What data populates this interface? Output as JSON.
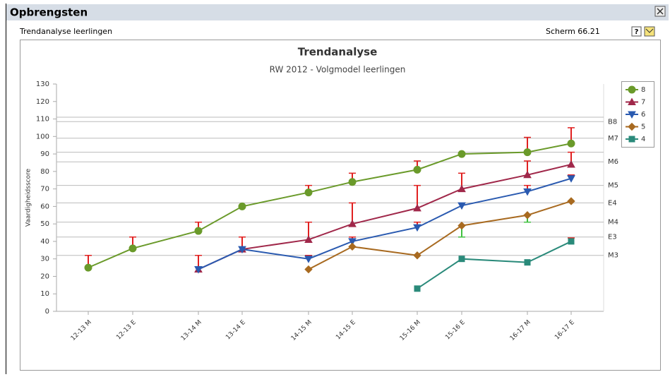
{
  "window": {
    "title": "Opbrengsten",
    "subtitle": "Trendanalyse leerlingen",
    "screen": "Scherm 66.21",
    "help": "?"
  },
  "chart_data": {
    "type": "line",
    "title": "Trendanalyse",
    "subtitle": "RW 2012 - Volgmodel leerlingen",
    "y_label": "Vaardigheidsscore",
    "categories": [
      "12-13 M",
      "12-13 E",
      "13-14 M",
      "13-14 E",
      "14-15 M",
      "14-15 E",
      "15-16 M",
      "15-16 E",
      "16-17 M",
      "16-17 E"
    ],
    "ylim": [
      0,
      130
    ],
    "yticks": [
      0,
      10,
      20,
      30,
      40,
      50,
      60,
      70,
      80,
      90,
      100,
      110,
      120,
      130
    ],
    "reference_lines": {
      "values": [
        111,
        108.5,
        99,
        91,
        85.5,
        72,
        62,
        51,
        42.5,
        32
      ],
      "labels": [
        null,
        "B8",
        "M7",
        null,
        "M6",
        "M5",
        "E4",
        "M4",
        "E3",
        "M3"
      ]
    },
    "series": [
      {
        "name": "8",
        "color": "#6a9a2a",
        "marker": "circle",
        "values": [
          25,
          36,
          46,
          60,
          68,
          74,
          81,
          90,
          91,
          96
        ],
        "targets": [
          32,
          42.5,
          51,
          null,
          72,
          79,
          86,
          null,
          99.5,
          105
        ]
      },
      {
        "name": "7",
        "color": "#a0284a",
        "marker": "triangle-up",
        "values": [
          null,
          null,
          24,
          35.5,
          41,
          50,
          59,
          70,
          78,
          84
        ],
        "targets": [
          null,
          null,
          32,
          42.5,
          51,
          62,
          72,
          79,
          86,
          91
        ]
      },
      {
        "name": "6",
        "color": "#2a5ab0",
        "marker": "triangle-down",
        "values": [
          null,
          null,
          24,
          35.5,
          30,
          40,
          48,
          60.5,
          68.5,
          76
        ],
        "targets": [
          null,
          null,
          null,
          null,
          32,
          42.5,
          51,
          null,
          72,
          78
        ]
      },
      {
        "name": "5",
        "color": "#a86a20",
        "marker": "diamond",
        "values": [
          null,
          null,
          null,
          null,
          24,
          37,
          32,
          49,
          55,
          63
        ],
        "targets": [
          null,
          null,
          null,
          null,
          null,
          null,
          null,
          42.5,
          51,
          null
        ]
      },
      {
        "name": "4",
        "color": "#2a8a7a",
        "marker": "square",
        "values": [
          null,
          null,
          null,
          null,
          null,
          null,
          13,
          30,
          28,
          40
        ],
        "targets": [
          null,
          null,
          null,
          null,
          null,
          null,
          null,
          null,
          null,
          42
        ]
      }
    ]
  }
}
